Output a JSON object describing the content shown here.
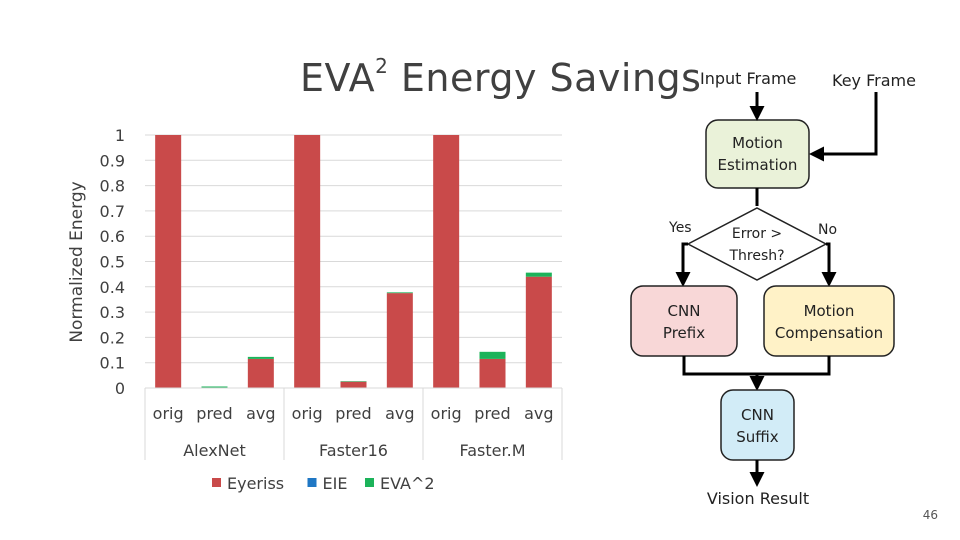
{
  "chart_data": {
    "type": "bar",
    "stacked": true,
    "title_main": "EVA",
    "title_sup": "2",
    "title_rest": " Energy Savings",
    "ylabel": "Normalized Energy",
    "ylim": [
      0,
      1
    ],
    "yticks": [
      "0",
      "0.1",
      "0.2",
      "0.3",
      "0.4",
      "0.5",
      "0.6",
      "0.7",
      "0.8",
      "0.9",
      "1"
    ],
    "groups": [
      {
        "name": "AlexNet",
        "categories": [
          "orig",
          "pred",
          "avg"
        ]
      },
      {
        "name": "Faster16",
        "categories": [
          "orig",
          "pred",
          "avg"
        ]
      },
      {
        "name": "Faster.M",
        "categories": [
          "orig",
          "pred",
          "avg"
        ]
      }
    ],
    "series": [
      {
        "name": "Eyeriss",
        "color": "#c94a4a",
        "values": [
          1.0,
          0.0,
          0.115,
          1.0,
          0.025,
          0.375,
          1.0,
          0.115,
          0.44
        ]
      },
      {
        "name": "EIE",
        "color": "#1f77c4",
        "values": [
          0.0,
          0.002,
          0.0,
          0.0,
          0.0,
          0.0,
          0.0,
          0.0,
          0.0
        ]
      },
      {
        "name": "EVA^2",
        "color": "#1cb35a",
        "values": [
          0.0,
          0.004,
          0.008,
          0.0,
          0.002,
          0.003,
          0.0,
          0.028,
          0.016
        ]
      }
    ],
    "grid": true,
    "legend_position": "bottom"
  },
  "flowchart": {
    "input_frame": "Input Frame",
    "key_frame": "Key Frame",
    "motion_estimation": [
      "Motion",
      "Estimation"
    ],
    "decision": [
      "Error >",
      "Thresh?"
    ],
    "yes": "Yes",
    "no": "No",
    "cnn_prefix": [
      "CNN",
      "Prefix"
    ],
    "motion_compensation": [
      "Motion",
      "Compensation"
    ],
    "cnn_suffix": [
      "CNN",
      "Suffix"
    ],
    "vision_result": "Vision Result"
  },
  "page_number": "46"
}
